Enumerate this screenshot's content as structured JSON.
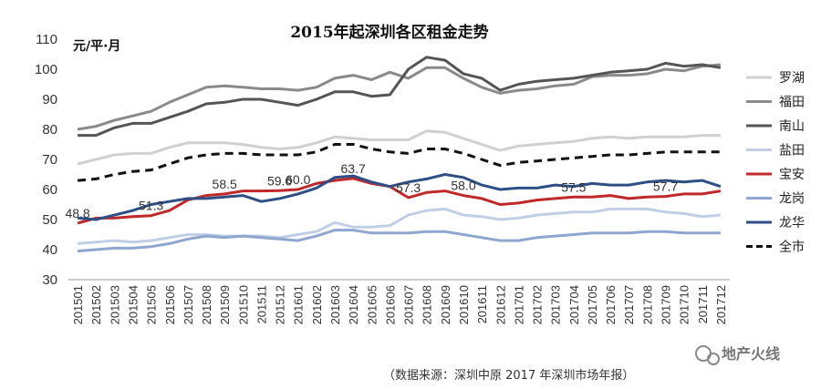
{
  "chart_data": {
    "type": "line",
    "title": "2015年起深圳各区租金走势",
    "ylabel": "元/平·月",
    "ylim": [
      30,
      110
    ],
    "yticks": [
      30,
      40,
      50,
      60,
      70,
      80,
      90,
      100,
      110
    ],
    "grid": false,
    "legend_placement": "right",
    "categories": [
      "201501",
      "201502",
      "201503",
      "201504",
      "201505",
      "201506",
      "201507",
      "201508",
      "201509",
      "201510",
      "201511",
      "201512",
      "201601",
      "201602",
      "201603",
      "201604",
      "201605",
      "201606",
      "201607",
      "201608",
      "201609",
      "201610",
      "201611",
      "201612",
      "201701",
      "201702",
      "201703",
      "201704",
      "201705",
      "201706",
      "201707",
      "201708",
      "201709",
      "201710",
      "201711",
      "201712"
    ],
    "series": [
      {
        "name": "罗湖",
        "color": "#d0d0d0",
        "dash": false,
        "values": [
          68.5,
          70,
          71.5,
          72,
          72,
          74,
          75.5,
          75.5,
          75.5,
          75,
          74,
          73.5,
          74,
          75.5,
          77.5,
          77,
          76.5,
          76.5,
          76.5,
          79.5,
          79,
          77,
          75,
          73,
          74.5,
          75,
          75.5,
          76,
          77,
          77.5,
          77,
          77.5,
          77.5,
          77.5,
          78,
          78
        ]
      },
      {
        "name": "福田",
        "color": "#8a8a8a",
        "dash": false,
        "values": [
          80,
          81,
          83,
          84.5,
          86,
          89,
          91.5,
          94,
          94.5,
          94,
          93.5,
          93.5,
          93,
          94,
          97,
          98,
          96.5,
          99,
          97,
          100.5,
          100.5,
          97,
          94,
          92,
          93,
          93.5,
          94.5,
          95,
          97.5,
          98,
          98,
          98.5,
          100,
          99.5,
          101,
          101.5
        ]
      },
      {
        "name": "南山",
        "color": "#555555",
        "dash": false,
        "values": [
          78,
          78,
          80.5,
          82,
          82,
          84,
          86,
          88.5,
          89,
          90,
          90,
          89,
          88,
          90,
          92.5,
          92.5,
          91,
          91.5,
          100,
          104,
          103,
          98.5,
          97,
          93,
          95,
          96,
          96.5,
          97,
          98,
          99,
          99.5,
          100,
          102,
          101,
          101.5,
          100.5
        ]
      },
      {
        "name": "盐田",
        "color": "#c0cfe6",
        "dash": false,
        "values": [
          42,
          42.5,
          43,
          42.5,
          43,
          44,
          45,
          45,
          44.5,
          44.5,
          44.5,
          44,
          45,
          46,
          49,
          47.5,
          47.5,
          48,
          51.5,
          53,
          53.5,
          51.5,
          51,
          50,
          50.5,
          51.5,
          52,
          52.5,
          52.5,
          53.5,
          53.5,
          53.5,
          52.5,
          52,
          51,
          51.5
        ]
      },
      {
        "name": "宝安",
        "color": "#c0282a",
        "dash": false,
        "values": [
          48.8,
          50.5,
          50.5,
          51,
          51.3,
          53,
          56.5,
          58,
          58.5,
          59.5,
          59.5,
          59.6,
          60,
          62,
          63,
          63.7,
          62,
          61,
          57.3,
          59,
          59.5,
          58,
          57,
          55,
          55.5,
          56.5,
          57,
          57.5,
          57.5,
          58,
          57,
          57.5,
          57.7,
          58.5,
          58.5,
          59.5
        ]
      },
      {
        "name": "龙岗",
        "color": "#8ea6d0",
        "dash": false,
        "values": [
          39.5,
          40,
          40.5,
          40.5,
          41,
          42,
          43.5,
          44.5,
          44,
          44.5,
          44,
          43.5,
          43,
          44.5,
          46.5,
          46.5,
          45.5,
          45.5,
          45.5,
          46,
          46,
          45,
          44,
          43,
          43,
          44,
          44.5,
          45,
          45.5,
          45.5,
          45.5,
          46,
          46,
          45.5,
          45.5,
          45.5
        ]
      },
      {
        "name": "龙华",
        "color": "#2d4f86",
        "dash": false,
        "values": [
          50.5,
          50,
          51.5,
          53,
          55,
          56,
          57,
          57,
          57.5,
          58,
          56,
          57,
          58.5,
          60.5,
          64,
          64.5,
          62.5,
          61,
          62.5,
          63.5,
          65,
          64,
          61.5,
          60,
          60.5,
          60.5,
          61.5,
          61,
          62,
          61.5,
          61.5,
          62.5,
          63,
          62.5,
          63,
          61
        ]
      },
      {
        "name": "全市",
        "color": "#111111",
        "dash": true,
        "values": [
          63,
          63.5,
          65,
          66,
          66.5,
          68.5,
          70.5,
          71.5,
          72,
          72,
          71.5,
          71.5,
          71.5,
          72.5,
          75,
          75,
          73.5,
          72.5,
          72,
          73.5,
          73.5,
          72,
          70,
          68,
          69,
          69.5,
          70,
          70.5,
          71,
          71.5,
          71.5,
          72,
          72.5,
          72.5,
          72.5,
          72.5
        ]
      }
    ],
    "annotations": [
      {
        "series": "宝安",
        "index": 0,
        "text": "48.8"
      },
      {
        "series": "宝安",
        "index": 4,
        "text": "51.3"
      },
      {
        "series": "宝安",
        "index": 8,
        "text": "58.5"
      },
      {
        "series": "宝安",
        "index": 11,
        "text": "59.6"
      },
      {
        "series": "宝安",
        "index": 12,
        "text": "60.0"
      },
      {
        "series": "宝安",
        "index": 15,
        "text": "63.7"
      },
      {
        "series": "宝安",
        "index": 18,
        "text": "57.3"
      },
      {
        "series": "宝安",
        "index": 21,
        "text": "58.0"
      },
      {
        "series": "宝安",
        "index": 27,
        "text": "57.5"
      },
      {
        "series": "宝安",
        "index": 32,
        "text": "57.7"
      }
    ]
  },
  "source_note": "（数据来源：深圳中原 2017 年深圳市场年报）",
  "watermark": "地产火线"
}
